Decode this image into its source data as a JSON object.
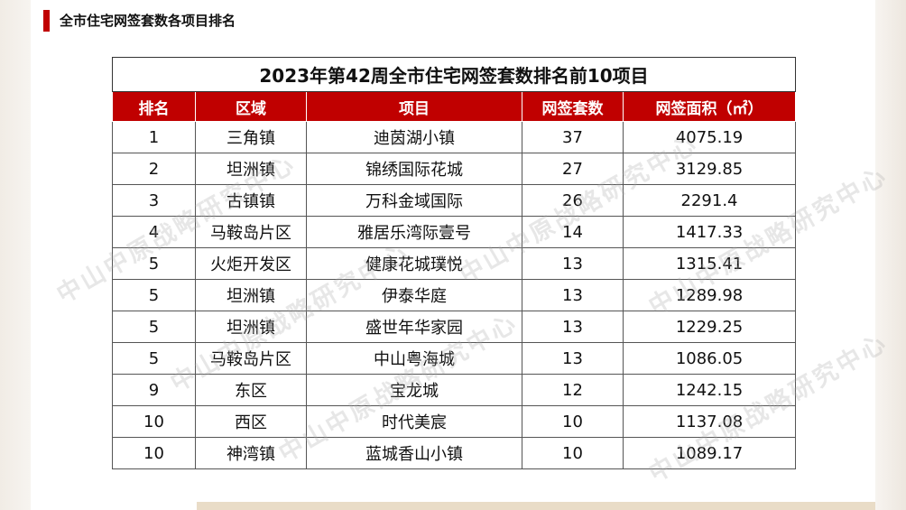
{
  "header": {
    "title": "全市住宅网签套数各项目排名"
  },
  "table": {
    "caption": "2023年第42周全市住宅网签套数排名前10项目",
    "columns": [
      "排名",
      "区域",
      "项目",
      "网签套数",
      "网签面积（㎡）"
    ],
    "rows": [
      [
        "1",
        "三角镇",
        "迪茵湖小镇",
        "37",
        "4075.19"
      ],
      [
        "2",
        "坦洲镇",
        "锦绣国际花城",
        "27",
        "3129.85"
      ],
      [
        "3",
        "古镇镇",
        "万科金域国际",
        "26",
        "2291.4"
      ],
      [
        "4",
        "马鞍岛片区",
        "雅居乐湾际壹号",
        "14",
        "1417.33"
      ],
      [
        "5",
        "火炬开发区",
        "健康花城璞悦",
        "13",
        "1315.41"
      ],
      [
        "5",
        "坦洲镇",
        "伊泰华庭",
        "13",
        "1289.98"
      ],
      [
        "5",
        "坦洲镇",
        "盛世年华家园",
        "13",
        "1229.25"
      ],
      [
        "5",
        "马鞍岛片区",
        "中山粤海城",
        "13",
        "1086.05"
      ],
      [
        "9",
        "东区",
        "宝龙城",
        "12",
        "1242.15"
      ],
      [
        "10",
        "西区",
        "时代美宸",
        "10",
        "1137.08"
      ],
      [
        "10",
        "神湾镇",
        "蓝城香山小镇",
        "10",
        "1089.17"
      ]
    ]
  },
  "watermark": "中山中原战略研究中心",
  "colors": {
    "accent": "#c00000"
  }
}
